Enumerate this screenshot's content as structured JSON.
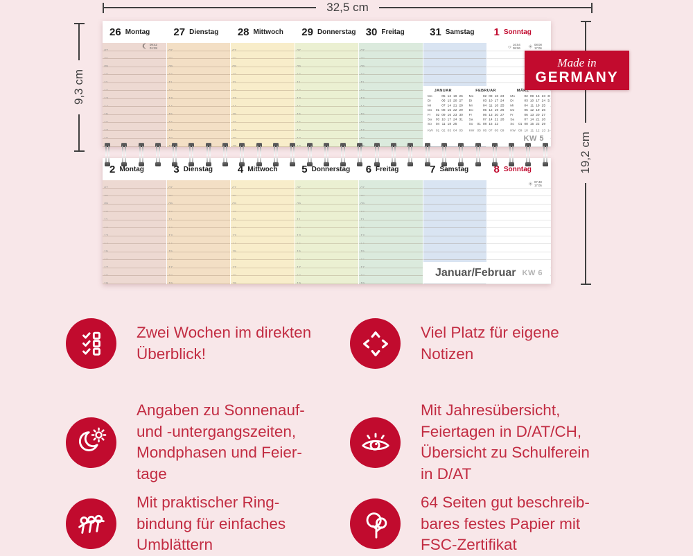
{
  "dimension_labels": {
    "width": "32,5 cm",
    "page_height": "9,3 cm",
    "total_height": "19,2 cm"
  },
  "badge": {
    "line1": "Made in",
    "line2": "GERMANY",
    "bg_color": "#c20b2e"
  },
  "colors": {
    "background": "#f8e7e9",
    "accent_red": "#c10b2e",
    "feature_text_red": "#c22c42",
    "sunday_red": "#c10a2e"
  },
  "calendar": {
    "hours": [
      "07",
      "08",
      "09",
      "10",
      "11",
      "12",
      "13",
      "14",
      "15",
      "16",
      "17",
      "18",
      "19"
    ],
    "day_colors": [
      "#edd9d2",
      "#f3dfc5",
      "#f8edca",
      "#ebf0d2",
      "#dbeadd",
      "#d9e4f2",
      "#ffffff"
    ],
    "weeks": [
      {
        "days": [
          {
            "num": "26",
            "name": "Montag"
          },
          {
            "num": "27",
            "name": "Dienstag"
          },
          {
            "num": "28",
            "name": "Mittwoch"
          },
          {
            "num": "29",
            "name": "Donnerstag"
          },
          {
            "num": "30",
            "name": "Freitag"
          },
          {
            "num": "31",
            "name": "Samstag"
          },
          {
            "num": "1",
            "name": "Sonntag"
          }
        ],
        "moon_note": {
          "times": [
            "09:42",
            "01:28"
          ]
        },
        "sun_note": {
          "moon_times": [
            "16:54",
            "08:06"
          ],
          "sun_times": [
            "08:08",
            "17:06"
          ]
        },
        "kw_label": "KW 5"
      },
      {
        "days": [
          {
            "num": "2",
            "name": "Montag"
          },
          {
            "num": "3",
            "name": "Dienstag"
          },
          {
            "num": "4",
            "name": "Mittwoch"
          },
          {
            "num": "5",
            "name": "Donnerstag"
          },
          {
            "num": "6",
            "name": "Freitag"
          },
          {
            "num": "7",
            "name": "Samstag"
          },
          {
            "num": "8",
            "name": "Sonntag"
          }
        ],
        "sun_note": {
          "sun_times": [
            "07:48",
            "17:05"
          ]
        },
        "footer": {
          "label": "Januar/Februar",
          "kw": "KW 6"
        }
      }
    ],
    "mini_months": [
      {
        "name": "JANUAR",
        "rows": [
          [
            "Mo",
            "",
            "05",
            "12",
            "19",
            "26"
          ],
          [
            "Di",
            "",
            "06",
            "13",
            "20",
            "27"
          ],
          [
            "Mi",
            "",
            "07",
            "14",
            "21",
            "28"
          ],
          [
            "Do",
            "01",
            "08",
            "15",
            "22",
            "29"
          ],
          [
            "Fr",
            "02",
            "09",
            "16",
            "23",
            "30"
          ],
          [
            "Sa",
            "03",
            "10",
            "17",
            "24",
            "31"
          ],
          [
            "So",
            "04",
            "11",
            "18",
            "25",
            ""
          ],
          [
            "KW",
            "01",
            "02",
            "03",
            "04",
            "05"
          ]
        ]
      },
      {
        "name": "FEBRUAR",
        "rows": [
          [
            "Mo",
            "",
            "02",
            "09",
            "16",
            "23"
          ],
          [
            "Di",
            "",
            "03",
            "10",
            "17",
            "24"
          ],
          [
            "Mi",
            "",
            "04",
            "11",
            "18",
            "25"
          ],
          [
            "Do",
            "",
            "05",
            "12",
            "19",
            "26"
          ],
          [
            "Fr",
            "",
            "06",
            "13",
            "20",
            "27"
          ],
          [
            "Sa",
            "",
            "07",
            "14",
            "21",
            "28"
          ],
          [
            "So",
            "01",
            "08",
            "15",
            "22",
            ""
          ],
          [
            "KW",
            "05",
            "06",
            "07",
            "08",
            "09"
          ]
        ]
      },
      {
        "name": "MÄRZ",
        "rows": [
          [
            "Mo",
            "",
            "02",
            "09",
            "16",
            "23",
            "30"
          ],
          [
            "Di",
            "",
            "03",
            "10",
            "17",
            "24",
            "31"
          ],
          [
            "Mi",
            "",
            "04",
            "11",
            "18",
            "25",
            ""
          ],
          [
            "Do",
            "",
            "05",
            "12",
            "19",
            "26",
            ""
          ],
          [
            "Fr",
            "",
            "06",
            "13",
            "20",
            "27",
            ""
          ],
          [
            "Sa",
            "",
            "07",
            "14",
            "21",
            "28",
            ""
          ],
          [
            "So",
            "01",
            "08",
            "15",
            "22",
            "29",
            ""
          ],
          [
            "KW",
            "09",
            "10",
            "11",
            "12",
            "13",
            "14"
          ]
        ]
      }
    ]
  },
  "features": {
    "left": [
      {
        "icon": "checklist-icon",
        "text": "Zwei Wochen im direkten\nÜberblick!"
      },
      {
        "icon": "sun-moon-icon",
        "text": "Angaben zu Sonnenauf-\nund -untergangszeiten,\nMondphasen und Feier-\ntage"
      },
      {
        "icon": "ring-binding-icon",
        "text": "Mit praktischer Ring-\nbindung für einfaches\nUmblättern"
      }
    ],
    "right": [
      {
        "icon": "expand-arrows-icon",
        "text": "Viel Platz für eigene\nNotizen"
      },
      {
        "icon": "eye-icon",
        "text": "Mit Jahresübersicht,\nFeiertagen in D/AT/CH,\nÜbersicht zu Schulferein\nin D/AT"
      },
      {
        "icon": "tree-icon",
        "text": "64 Seiten gut beschreib-\nbares festes Papier mit\nFSC-Zertifikat"
      }
    ]
  }
}
